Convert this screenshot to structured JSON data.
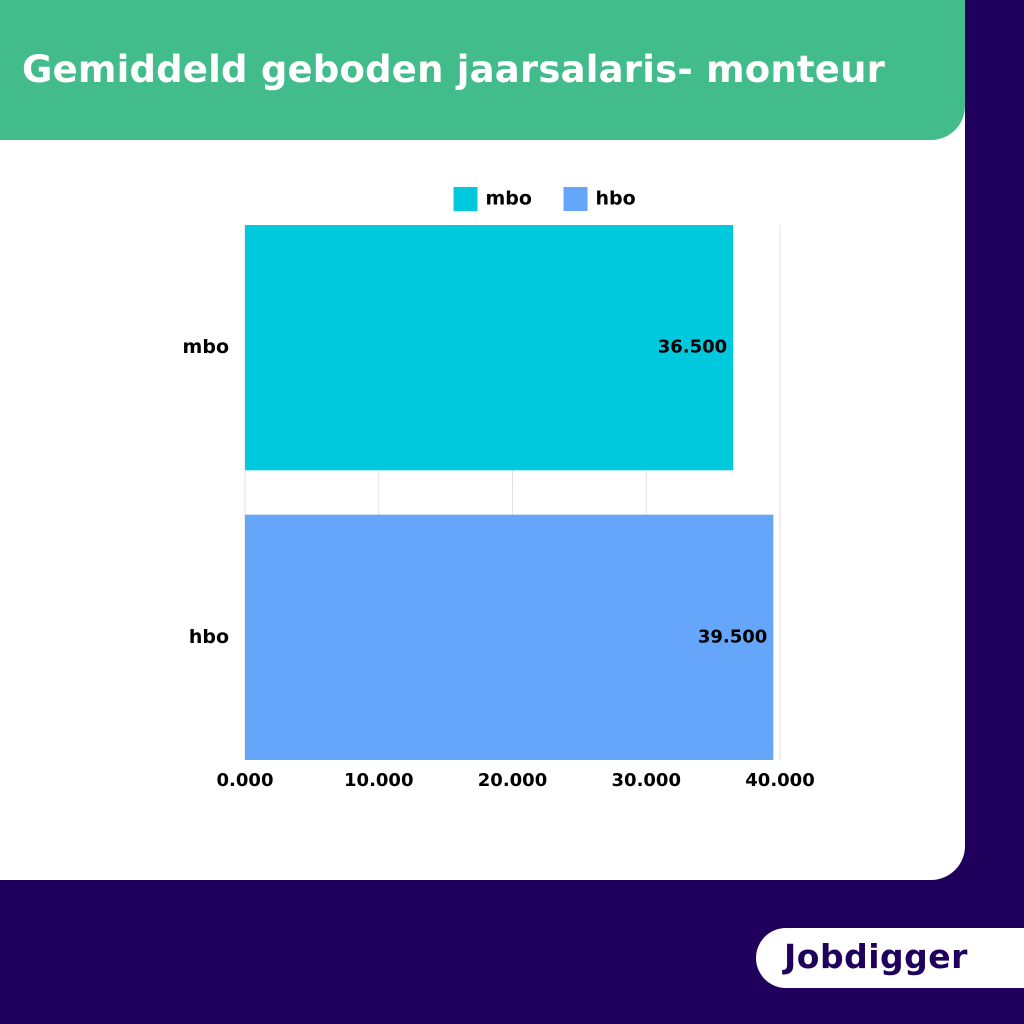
{
  "header": {
    "title": "Gemiddeld geboden jaarsalaris- monteur"
  },
  "brand": {
    "logo_text": "Jobdigger"
  },
  "colors": {
    "background": "#1f005c",
    "header": "#43bc8c",
    "mbo": "#00c9dd",
    "hbo": "#66a6fa",
    "grid": "#e2e2e2"
  },
  "chart_data": {
    "type": "bar",
    "orientation": "horizontal",
    "categories": [
      "mbo",
      "hbo"
    ],
    "series": [
      {
        "name": "mbo",
        "values": [
          36500,
          null
        ]
      },
      {
        "name": "hbo",
        "values": [
          null,
          39500
        ]
      }
    ],
    "data_labels": [
      "36.500",
      "39.500"
    ],
    "x_ticks": [
      0,
      10000,
      20000,
      30000,
      40000
    ],
    "x_tick_labels": [
      "0.000",
      "10.000",
      "20.000",
      "30.000",
      "40.000"
    ],
    "xlim": [
      0,
      40000
    ],
    "title": "",
    "xlabel": "",
    "ylabel": "",
    "legend": {
      "placement": "top-center",
      "entries": [
        "mbo",
        "hbo"
      ]
    },
    "grid": true
  }
}
